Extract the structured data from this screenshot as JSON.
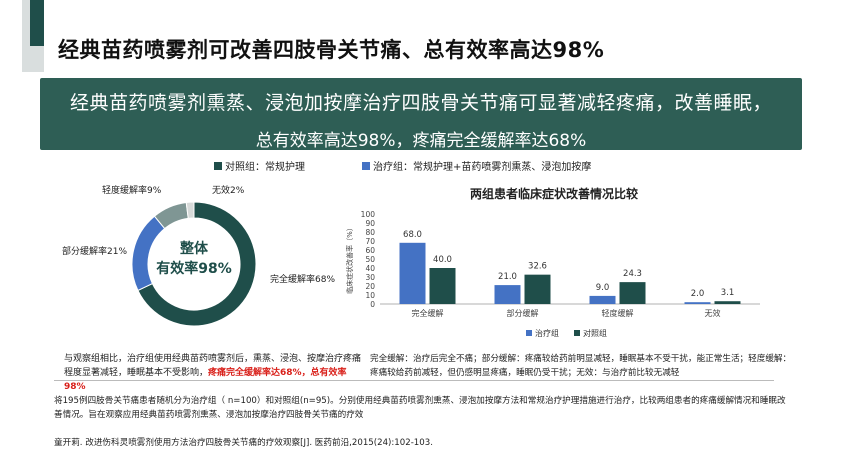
{
  "title": "经典苗药喷雾剂可改善四肢骨关节痛、总有效率高达98%",
  "banner": {
    "line1": "经典苗药喷雾剂熏蒸、浸泡加按摩治疗四肢骨关节痛可显著减轻疼痛，改善睡眠，",
    "line2": "总有效率高达98%，疼痛完全缓解率达68%"
  },
  "legend_top": {
    "control": "对照组：常规护理",
    "treatment": "治疗组：常规护理+苗药喷雾剂熏蒸、浸泡加按摩"
  },
  "colors": {
    "dark_green": "#1f4e4a",
    "blue": "#4472c4",
    "gray": "#7f9694",
    "light_gray": "#d7dad9",
    "accent_red": "#d9201a"
  },
  "donut": {
    "center_line1": "整体",
    "center_line2": "有效率98%",
    "slices": [
      {
        "label": "完全缓解率68%",
        "value": 68,
        "color": "#1f4e4a"
      },
      {
        "label": "部分缓解率21%",
        "value": 21,
        "color": "#4472c4"
      },
      {
        "label": "轻度缓解率9%",
        "value": 9,
        "color": "#7f9694"
      },
      {
        "label": "无效2%",
        "value": 2,
        "color": "#d7dad9"
      }
    ]
  },
  "chart_data": {
    "type": "bar",
    "title": "两组患者临床症状改善情况比较",
    "ylabel": "临床症状改善率（%）",
    "xlabel": "",
    "ylim": [
      0,
      100
    ],
    "yticks": [
      0,
      10,
      20,
      30,
      40,
      50,
      60,
      70,
      80,
      90,
      100
    ],
    "categories": [
      "完全缓解",
      "部分缓解",
      "轻度缓解",
      "无效"
    ],
    "series": [
      {
        "name": "治疗组",
        "values": [
          68.0,
          21.0,
          9.0,
          2.0
        ],
        "color": "#4472c4"
      },
      {
        "name": "对照组",
        "values": [
          40.0,
          32.6,
          24.3,
          3.1
        ],
        "color": "#1f4e4a"
      }
    ],
    "data_labels": [
      [
        "68.0",
        "21.0",
        "9.0",
        "2.0"
      ],
      [
        "40.0",
        "32.6",
        "24.3",
        "3.1"
      ]
    ],
    "legend": "bottom",
    "grid": false
  },
  "notes": {
    "left_line1": "与观察组相比，治疗组使用经典苗药喷雾剂后，熏蒸、浸泡、按摩治疗疼痛",
    "left_line2_a": "程度显著减轻，睡眠基本不受影响，",
    "left_line2_red": "疼痛完全缓解率达68%，总有效率98%",
    "right_line1": "完全缓解：治疗后完全不痛；部分缓解：疼痛较给药前明显减轻，睡眠基本不受干扰，能正常生活；轻度缓解：",
    "right_line2": "疼痛较给药前减轻，但仍感明显疼痛，睡眠仍受干扰；无效：与治疗前比较无减轻"
  },
  "footer": {
    "line1": "将195例四肢骨关节痛患者随机分为治疗组（ n=100）和对照组(n=95)。分别使用经典苗药喷雾剂熏蒸、浸泡加按摩方法和常规治疗护理措施进行治疗，比较两组患者的疼痛缓解情况和睡眠改",
    "line2": "善情况。旨在观察应用经典苗药喷雾剂熏蒸、浸泡加按摩治疗四肢骨关节痛的疗效",
    "reference": "童开莉. 改进伤科灵喷雾剂使用方法治疗四肢骨关节痛的疗效观察[J]. 医药前沿,2015(24):102-103."
  }
}
